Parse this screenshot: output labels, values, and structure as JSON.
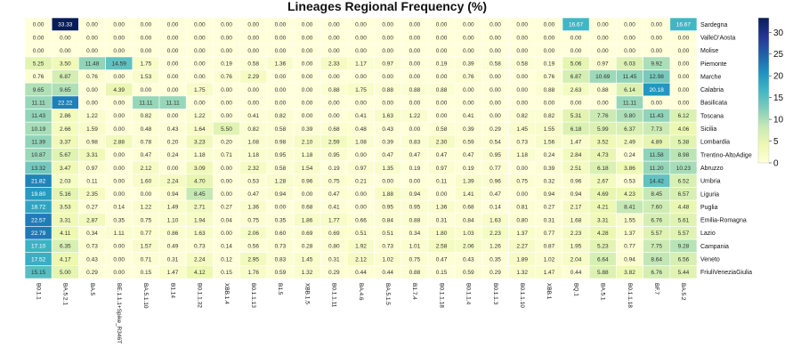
{
  "chart_data": {
    "type": "heatmap",
    "title": "Lineages Regional Frequency (%)",
    "xlabel": "",
    "ylabel": "",
    "x": [
      "B0.1.1",
      "BA.5.2.1",
      "BA.5",
      "BE.1.1.1+Spike_R346T",
      "BA.5.1.10",
      "B1.14",
      "B0.1.1.32",
      "XBB.1.4",
      "B0.1.1.13",
      "B1.5",
      "XBB.1.5",
      "B0.1.1.11",
      "BA.4.6",
      "BA.5.1.5",
      "B1.7.4",
      "B0.1.1.18",
      "B0.1.1.4",
      "B0.1.1.3",
      "B0.1.1.10",
      "XBB.1",
      "BQ.1",
      "BA.5.1",
      "B0.1.1.18",
      "BF.7",
      "BA.5.2"
    ],
    "y": [
      "Sardegna",
      "ValleD'Aosta",
      "Molise",
      "Piemonte",
      "Marche",
      "Calabria",
      "Basilicata",
      "Toscana",
      "Sicilia",
      "Lombardia",
      "Trentino-AltoAdige",
      "Abruzzo",
      "Umbria",
      "Liguria",
      "Puglia",
      "Emilia-Romagna",
      "Lazio",
      "Campania",
      "Veneto",
      "FriuliVeneziaGiulia"
    ],
    "values": [
      [
        0.0,
        33.33,
        0.0,
        0.0,
        0.0,
        0.0,
        0.0,
        0.0,
        0.0,
        0.0,
        0.0,
        0.0,
        0.0,
        0.0,
        0.0,
        0.0,
        0.0,
        0.0,
        0.0,
        0.0,
        16.67,
        0.0,
        0.0,
        0.0,
        16.67
      ],
      [
        0.0,
        0.0,
        0.0,
        0.0,
        0.0,
        0.0,
        0.0,
        0.0,
        0.0,
        0.0,
        0.0,
        0.0,
        0.0,
        0.0,
        0.0,
        0.0,
        0.0,
        0.0,
        0.0,
        0.0,
        0.0,
        0.0,
        0.0,
        0.0,
        0.0
      ],
      [
        0.0,
        0.0,
        0.0,
        0.0,
        0.0,
        0.0,
        0.0,
        0.0,
        0.0,
        0.0,
        0.0,
        0.0,
        0.0,
        0.0,
        0.0,
        0.0,
        0.0,
        0.0,
        0.0,
        0.0,
        0.0,
        0.0,
        0.0,
        0.0,
        0.0
      ],
      [
        5.25,
        3.5,
        11.48,
        14.59,
        1.75,
        0.0,
        0.0,
        0.19,
        0.58,
        1.36,
        0.0,
        2.33,
        1.17,
        0.97,
        0.0,
        0.19,
        0.39,
        0.58,
        0.58,
        0.19,
        5.06,
        0.97,
        6.03,
        9.92,
        0.0
      ],
      [
        0.76,
        6.87,
        0.76,
        0.0,
        1.53,
        0.0,
        0.0,
        0.76,
        2.29,
        0.0,
        0.0,
        0.0,
        0.0,
        0.0,
        0.0,
        0.0,
        0.76,
        0.0,
        0.0,
        0.76,
        6.87,
        10.69,
        11.45,
        12.98,
        0.0
      ],
      [
        9.65,
        9.65,
        0.0,
        4.39,
        0.0,
        0.0,
        1.75,
        0.0,
        0.0,
        0.0,
        0.0,
        0.88,
        1.75,
        0.88,
        0.88,
        0.88,
        0.0,
        0.0,
        0.0,
        0.88,
        2.63,
        0.88,
        6.14,
        20.18,
        0.0
      ],
      [
        11.11,
        22.22,
        0.0,
        0.0,
        11.11,
        11.11,
        0.0,
        0.0,
        0.0,
        0.0,
        0.0,
        0.0,
        0.0,
        0.0,
        0.0,
        0.0,
        0.0,
        0.0,
        0.0,
        0.0,
        0.0,
        0.0,
        11.11,
        0.0,
        0.0
      ],
      [
        11.43,
        2.86,
        1.22,
        0.0,
        0.82,
        0.0,
        1.22,
        0.0,
        0.41,
        0.82,
        0.0,
        0.0,
        0.41,
        1.63,
        1.22,
        0.0,
        0.41,
        0.0,
        0.82,
        0.82,
        5.31,
        7.76,
        9.8,
        11.43,
        6.12
      ],
      [
        10.19,
        2.66,
        1.59,
        0.0,
        0.48,
        0.43,
        1.64,
        5.5,
        0.82,
        0.58,
        0.39,
        0.68,
        0.48,
        0.43,
        0.0,
        0.58,
        0.39,
        0.29,
        1.45,
        1.55,
        6.18,
        5.99,
        6.37,
        7.73,
        4.06
      ],
      [
        11.39,
        3.37,
        0.98,
        2.88,
        0.78,
        0.2,
        3.23,
        0.2,
        1.08,
        0.98,
        2.1,
        2.59,
        1.08,
        0.39,
        0.83,
        2.3,
        0.59,
        0.54,
        0.73,
        1.56,
        1.47,
        3.52,
        2.49,
        4.89,
        5.38
      ],
      [
        10.87,
        5.67,
        3.31,
        0.0,
        0.47,
        0.24,
        1.18,
        0.71,
        1.18,
        0.95,
        1.18,
        0.95,
        0.0,
        0.47,
        0.47,
        0.47,
        0.47,
        0.95,
        1.18,
        0.24,
        2.84,
        4.73,
        0.24,
        11.58,
        8.98
      ],
      [
        13.32,
        3.47,
        0.97,
        0.0,
        2.12,
        0.0,
        3.09,
        0.0,
        2.32,
        0.58,
        1.54,
        0.19,
        0.97,
        1.35,
        0.19,
        0.97,
        0.19,
        0.77,
        0.0,
        0.39,
        2.51,
        6.18,
        3.86,
        11.2,
        10.23
      ],
      [
        21.82,
        2.03,
        0.11,
        0.0,
        1.6,
        2.24,
        4.7,
        0.0,
        0.53,
        1.28,
        0.96,
        0.75,
        0.21,
        0.0,
        0.0,
        0.11,
        1.39,
        0.96,
        0.75,
        0.32,
        0.96,
        2.67,
        0.53,
        14.42,
        6.52
      ],
      [
        19.8,
        5.16,
        2.35,
        0.0,
        0.0,
        0.94,
        8.45,
        0.0,
        0.47,
        0.94,
        0.0,
        0.47,
        0.0,
        1.88,
        0.94,
        0.0,
        1.41,
        0.47,
        0.0,
        0.94,
        0.94,
        4.69,
        4.23,
        8.45,
        6.57
      ],
      [
        18.72,
        3.53,
        0.27,
        0.14,
        1.22,
        1.49,
        2.71,
        0.27,
        1.36,
        0.0,
        0.68,
        0.41,
        0.0,
        0.95,
        0.95,
        1.36,
        0.68,
        0.14,
        0.81,
        0.27,
        2.17,
        4.21,
        8.41,
        7.6,
        4.48
      ],
      [
        22.57,
        3.31,
        2.87,
        0.35,
        0.75,
        1.1,
        1.94,
        0.04,
        0.75,
        0.35,
        1.86,
        1.77,
        0.66,
        0.84,
        0.88,
        0.31,
        0.84,
        1.63,
        0.8,
        0.31,
        1.68,
        3.31,
        1.55,
        6.76,
        5.61
      ],
      [
        22.79,
        4.11,
        0.34,
        1.11,
        0.77,
        0.86,
        1.63,
        0.0,
        2.06,
        0.6,
        0.69,
        0.69,
        0.51,
        0.51,
        0.34,
        1.8,
        1.03,
        2.23,
        1.37,
        0.77,
        2.23,
        4.28,
        1.37,
        5.57,
        5.57
      ],
      [
        17.1,
        6.35,
        0.73,
        0.0,
        1.57,
        0.49,
        0.73,
        0.14,
        0.56,
        0.73,
        0.28,
        0.8,
        1.92,
        0.73,
        1.01,
        2.58,
        2.06,
        1.26,
        2.27,
        0.87,
        1.95,
        5.23,
        0.77,
        7.75,
        9.28
      ],
      [
        17.52,
        4.17,
        0.43,
        0.0,
        0.71,
        0.31,
        2.24,
        0.12,
        2.95,
        0.83,
        1.45,
        0.31,
        2.12,
        1.02,
        0.75,
        0.47,
        0.43,
        0.35,
        1.89,
        1.02,
        2.04,
        6.64,
        0.94,
        8.64,
        6.56
      ],
      [
        15.15,
        5.0,
        0.29,
        0.0,
        0.15,
        1.47,
        4.12,
        0.15,
        1.76,
        0.59,
        1.32,
        0.29,
        0.44,
        0.44,
        0.88,
        0.15,
        0.59,
        0.29,
        1.32,
        1.47,
        0.44,
        5.88,
        3.82,
        6.76,
        5.44
      ]
    ],
    "vmin": 0,
    "vmax": 33.33,
    "colorbar_ticks": [
      0,
      5,
      10,
      15,
      20,
      25,
      30
    ],
    "colorscale": [
      "#ffffd9",
      "#edf8b1",
      "#c7e9b4",
      "#7fcdbb",
      "#41b6c4",
      "#1d91c0",
      "#225ea8",
      "#253494",
      "#081d58"
    ],
    "grid": true,
    "legend": "right"
  }
}
